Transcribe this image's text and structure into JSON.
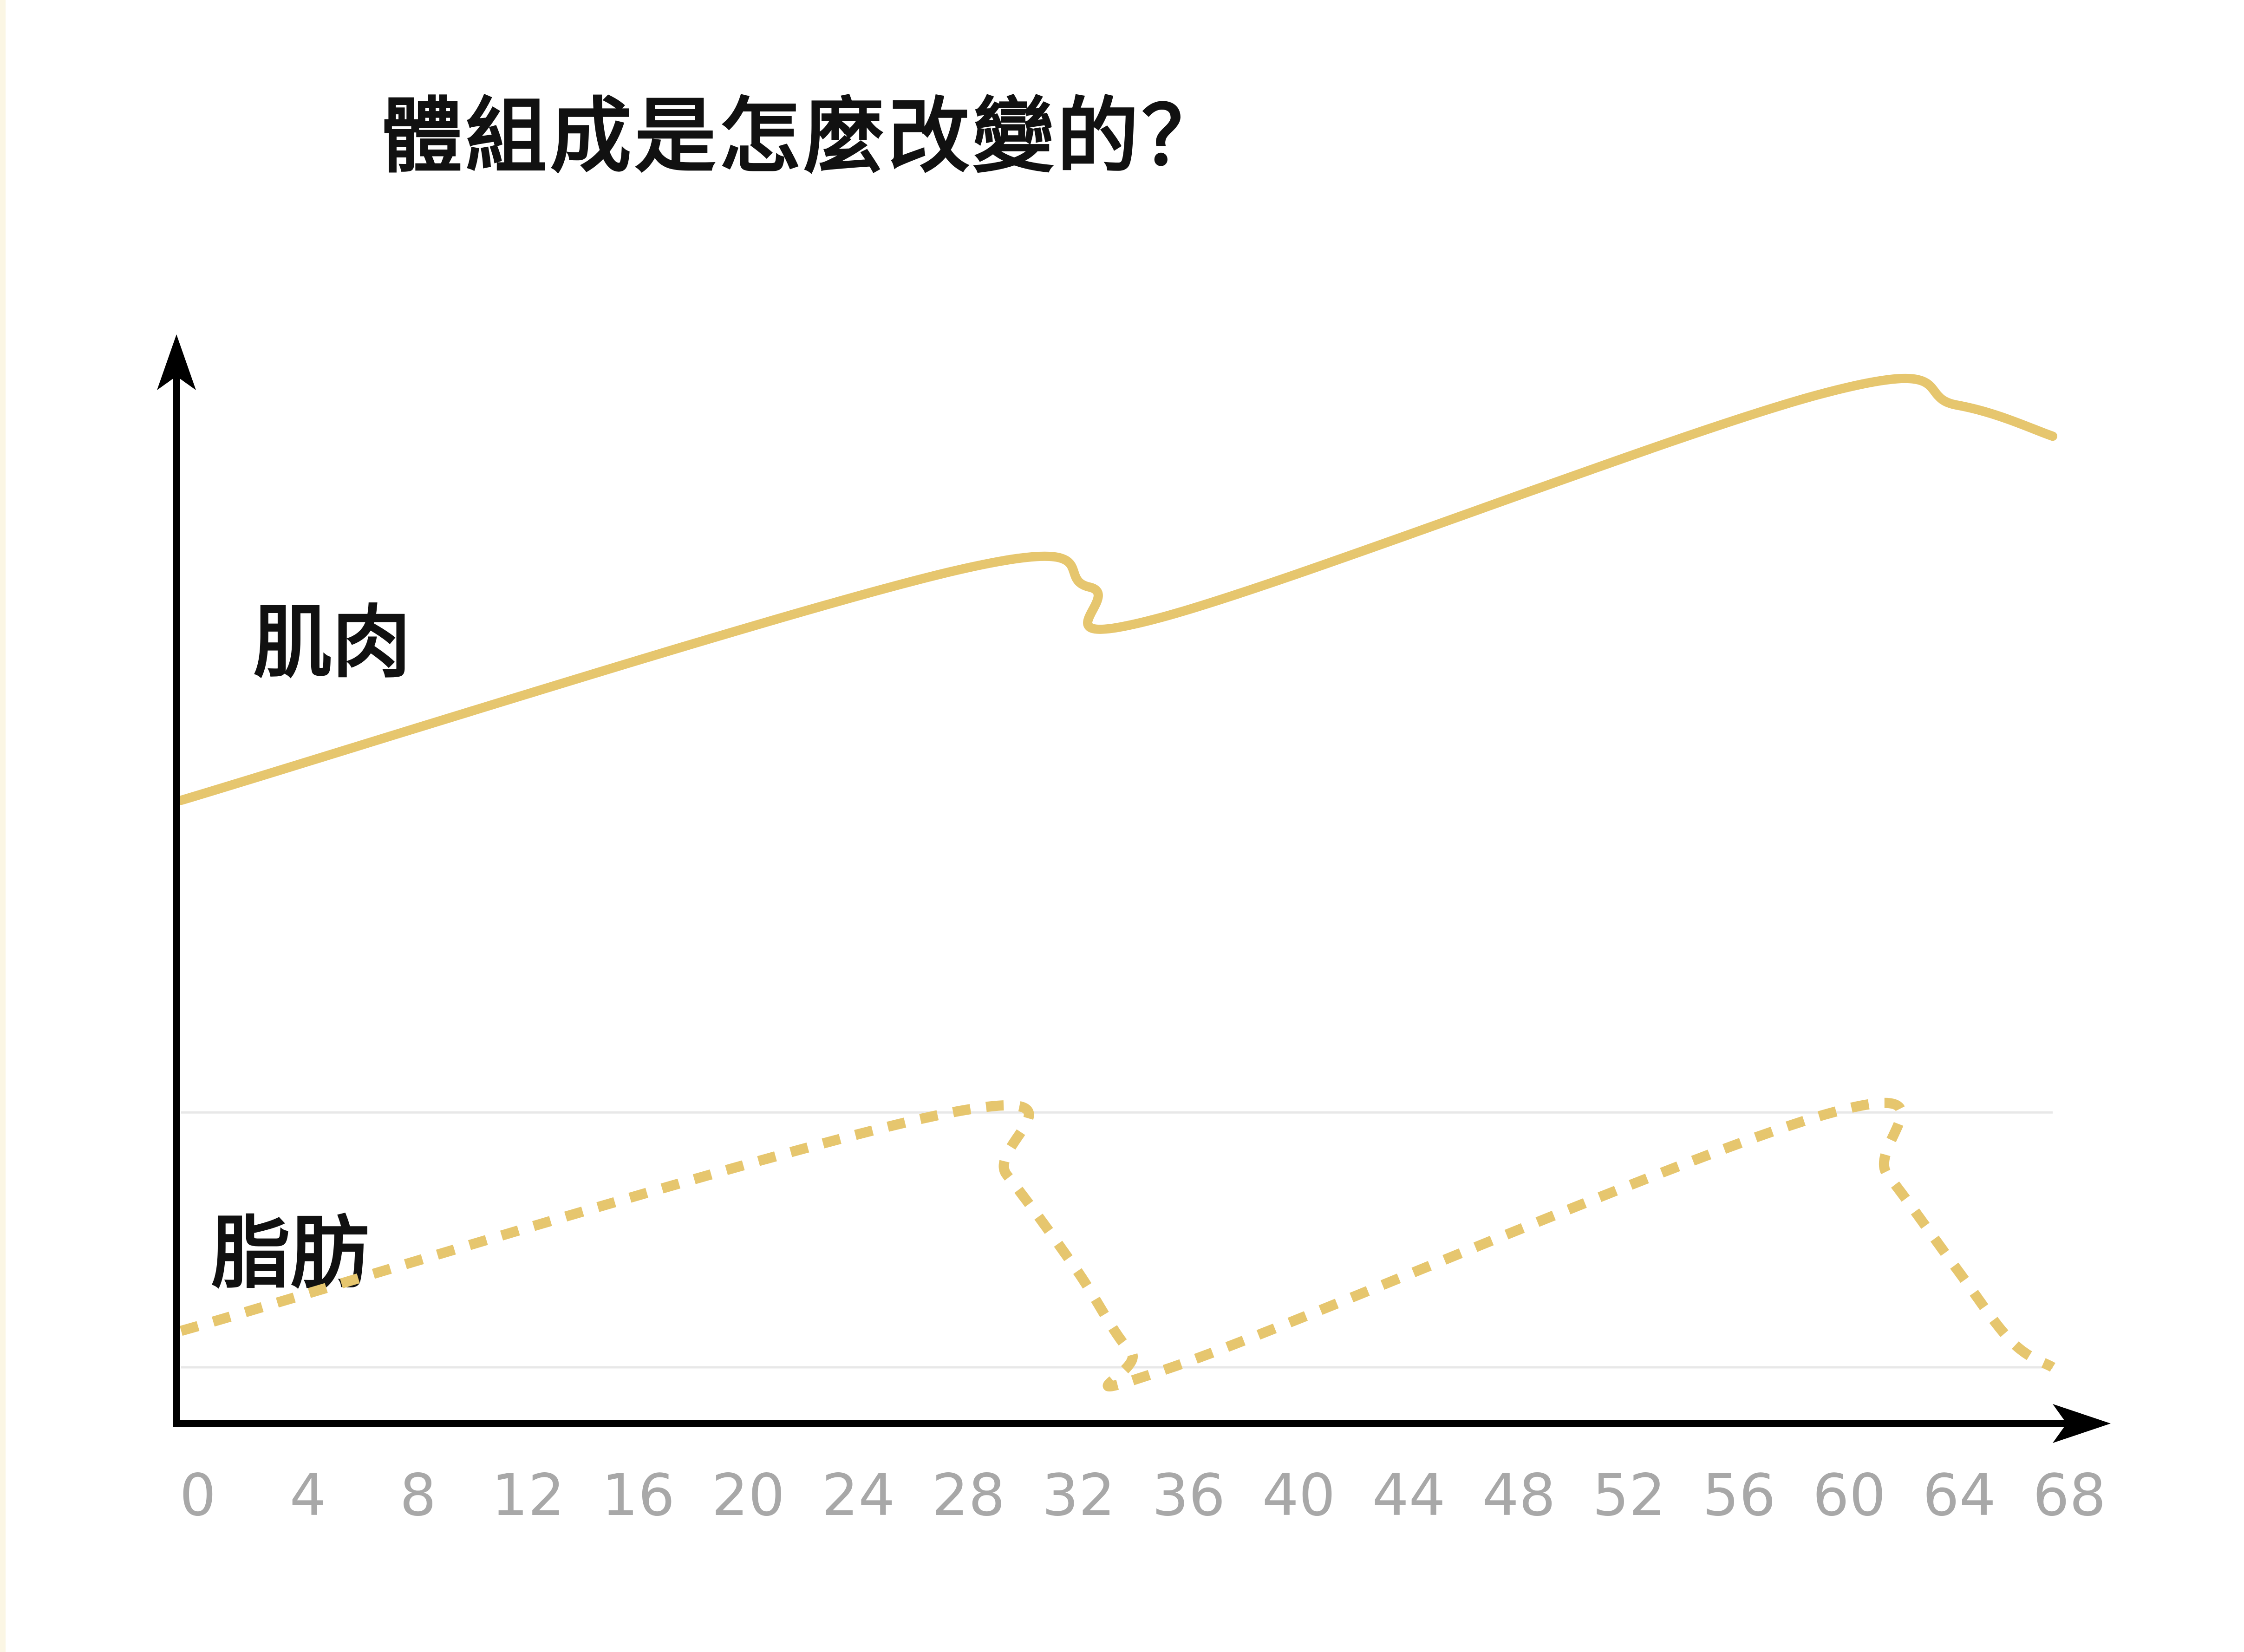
{
  "title": "體組成是怎麼改變的？",
  "chart_data": {
    "type": "line",
    "title": "體組成是怎麼改變的？",
    "xlabel": "",
    "ylabel": "",
    "x_ticks": [
      "0",
      "4",
      "8",
      "12",
      "16",
      "20",
      "24",
      "28",
      "32",
      "36",
      "40",
      "44",
      "48",
      "52",
      "56",
      "60",
      "64",
      "68"
    ],
    "xlim": [
      0,
      68
    ],
    "ylim": [
      0,
      100
    ],
    "grid": false,
    "series": [
      {
        "name": "肌肉",
        "style": "solid",
        "color": "#e6c66e",
        "points": [
          [
            0,
            57
          ],
          [
            28,
            79
          ],
          [
            33,
            77.5
          ],
          [
            35.5,
            74.5
          ],
          [
            59.5,
            96
          ],
          [
            64.5,
            95
          ],
          [
            68,
            92
          ]
        ]
      },
      {
        "name": "脂肪",
        "style": "dashed",
        "color": "#e6c66e",
        "points": [
          [
            0,
            6
          ],
          [
            28,
            27
          ],
          [
            30,
            21
          ],
          [
            32.5,
            12
          ],
          [
            34.5,
            4
          ],
          [
            36,
            2.5
          ],
          [
            60,
            27
          ],
          [
            62,
            21
          ],
          [
            64.5,
            12
          ],
          [
            66.5,
            5
          ],
          [
            68,
            2.5
          ]
        ]
      }
    ],
    "reference_lines": [
      {
        "y": 27,
        "color": "#e8e8e8"
      },
      {
        "y": 2.5,
        "color": "#e8e8e8"
      }
    ]
  }
}
